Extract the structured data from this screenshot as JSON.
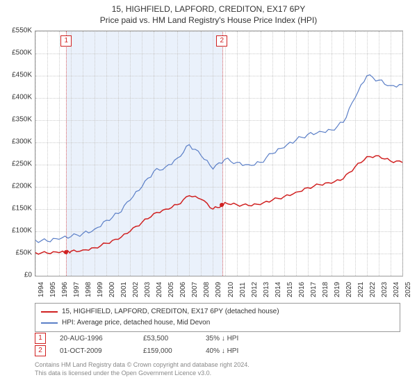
{
  "title": "15, HIGHFIELD, LAPFORD, CREDITON, EX17 6PY",
  "subtitle": "Price paid vs. HM Land Registry's House Price Index (HPI)",
  "chart": {
    "type": "line",
    "background_color": "#ffffff",
    "grid_color": "#cccccc",
    "border_color": "#999999",
    "ylim": [
      0,
      550000
    ],
    "ytick_step": 50000,
    "ytick_labels": [
      "£0",
      "£50K",
      "£100K",
      "£150K",
      "£200K",
      "£250K",
      "£300K",
      "£350K",
      "£400K",
      "£450K",
      "£500K",
      "£550K"
    ],
    "x_years": [
      1994,
      1995,
      1996,
      1997,
      1998,
      1999,
      2000,
      2001,
      2002,
      2003,
      2004,
      2005,
      2006,
      2007,
      2008,
      2009,
      2010,
      2011,
      2012,
      2013,
      2014,
      2015,
      2016,
      2017,
      2018,
      2019,
      2020,
      2021,
      2022,
      2023,
      2024,
      2025
    ],
    "marker_band": {
      "start_year": 1996.6,
      "end_year": 2009.75,
      "fill": "#eaf1fb",
      "border": "#e06060"
    },
    "markers": [
      {
        "idx": "1",
        "year": 1996.6,
        "price": 53500
      },
      {
        "idx": "2",
        "year": 2009.75,
        "price": 159000
      }
    ],
    "series": [
      {
        "name": "property",
        "label": "15, HIGHFIELD, LAPFORD, CREDITON, EX17 6PY (detached house)",
        "color": "#d02020",
        "width": 1.5,
        "points": [
          [
            1994,
            52000
          ],
          [
            1995,
            51000
          ],
          [
            1996,
            52000
          ],
          [
            1996.6,
            53500
          ],
          [
            1997,
            55000
          ],
          [
            1998,
            58000
          ],
          [
            1999,
            63000
          ],
          [
            2000,
            73000
          ],
          [
            2001,
            82000
          ],
          [
            2002,
            100000
          ],
          [
            2003,
            120000
          ],
          [
            2004,
            140000
          ],
          [
            2005,
            150000
          ],
          [
            2006,
            160000
          ],
          [
            2007,
            180000
          ],
          [
            2008,
            172000
          ],
          [
            2009,
            150000
          ],
          [
            2009.75,
            159000
          ],
          [
            2010,
            165000
          ],
          [
            2011,
            160000
          ],
          [
            2012,
            158000
          ],
          [
            2013,
            160000
          ],
          [
            2014,
            170000
          ],
          [
            2015,
            178000
          ],
          [
            2016,
            188000
          ],
          [
            2017,
            198000
          ],
          [
            2018,
            205000
          ],
          [
            2019,
            208000
          ],
          [
            2020,
            218000
          ],
          [
            2021,
            245000
          ],
          [
            2022,
            268000
          ],
          [
            2023,
            270000
          ],
          [
            2024,
            258000
          ],
          [
            2025,
            255000
          ]
        ]
      },
      {
        "name": "hpi",
        "label": "HPI: Average price, detached house, Mid Devon",
        "color": "#5b7fc7",
        "width": 1.2,
        "points": [
          [
            1994,
            80000
          ],
          [
            1995,
            78000
          ],
          [
            1996,
            82000
          ],
          [
            1997,
            88000
          ],
          [
            1998,
            95000
          ],
          [
            1999,
            105000
          ],
          [
            2000,
            125000
          ],
          [
            2001,
            140000
          ],
          [
            2002,
            170000
          ],
          [
            2003,
            200000
          ],
          [
            2004,
            235000
          ],
          [
            2005,
            245000
          ],
          [
            2006,
            265000
          ],
          [
            2007,
            295000
          ],
          [
            2008,
            270000
          ],
          [
            2009,
            240000
          ],
          [
            2010,
            262000
          ],
          [
            2011,
            255000
          ],
          [
            2012,
            250000
          ],
          [
            2013,
            255000
          ],
          [
            2014,
            275000
          ],
          [
            2015,
            288000
          ],
          [
            2016,
            305000
          ],
          [
            2017,
            318000
          ],
          [
            2018,
            325000
          ],
          [
            2019,
            328000
          ],
          [
            2020,
            345000
          ],
          [
            2021,
            400000
          ],
          [
            2022,
            450000
          ],
          [
            2023,
            440000
          ],
          [
            2024,
            428000
          ],
          [
            2025,
            430000
          ]
        ]
      }
    ]
  },
  "marker_table": [
    {
      "idx": "1",
      "date": "20-AUG-1996",
      "price": "£53,500",
      "diff": "35% ↓ HPI"
    },
    {
      "idx": "2",
      "date": "01-OCT-2009",
      "price": "£159,000",
      "diff": "40% ↓ HPI"
    }
  ],
  "footer_line1": "Contains HM Land Registry data © Crown copyright and database right 2024.",
  "footer_line2": "This data is licensed under the Open Government Licence v3.0.",
  "colors": {
    "marker_border": "#d02020",
    "footer_text": "#888888"
  }
}
